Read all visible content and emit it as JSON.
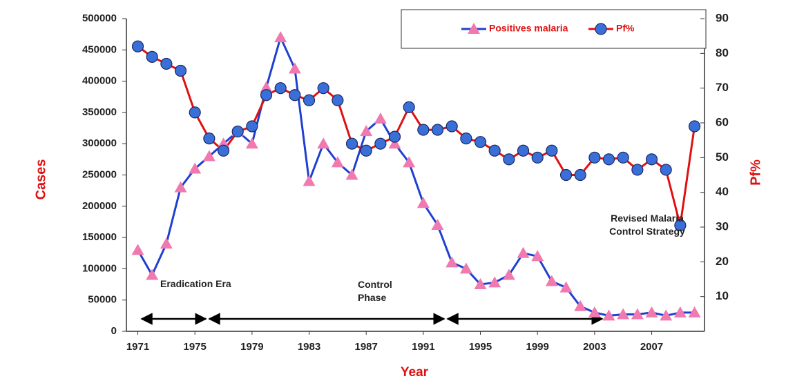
{
  "chart_data": {
    "type": "line",
    "x": [
      1971,
      1972,
      1973,
      1974,
      1975,
      1976,
      1977,
      1978,
      1979,
      1980,
      1981,
      1982,
      1983,
      1984,
      1985,
      1986,
      1987,
      1988,
      1989,
      1990,
      1991,
      1992,
      1993,
      1994,
      1995,
      1996,
      1997,
      1998,
      1999,
      2000,
      2001,
      2002,
      2003,
      2004,
      2005,
      2006,
      2007,
      2008,
      2009,
      2010
    ],
    "series": [
      {
        "name": "Positives malaria",
        "color": "#1f3fd0",
        "marker": "triangle",
        "marker_color": "#f07ab0",
        "values": [
          130000,
          90000,
          140000,
          230000,
          260000,
          280000,
          300000,
          320000,
          300000,
          390000,
          470000,
          420000,
          240000,
          300000,
          270000,
          250000,
          320000,
          340000,
          300000,
          270000,
          205000,
          170000,
          110000,
          100000,
          75000,
          78000,
          90000,
          125000,
          120000,
          80000,
          70000,
          40000,
          30000,
          25000,
          27000,
          27000,
          30000,
          25000,
          30000,
          30000
        ]
      },
      {
        "name": "Pf%",
        "color": "#e01010",
        "marker": "circle",
        "marker_color": "#3a6fd8",
        "axis": "y2",
        "values": [
          82,
          79,
          77,
          75,
          63,
          55.5,
          52,
          57.5,
          59,
          68,
          70,
          68,
          66.5,
          70,
          66.5,
          54,
          52,
          54,
          56,
          64.5,
          58,
          58,
          59,
          55.5,
          54.5,
          52,
          49.5,
          52,
          50,
          52,
          45,
          45,
          50,
          49.5,
          50,
          46.5,
          49.5,
          46.5,
          30.5,
          59
        ]
      }
    ],
    "xlabel": "Year",
    "ylabel": "Cases",
    "y2label": "Pf%",
    "xlim": [
      1970.2,
      2010.7
    ],
    "xticks": [
      1971,
      1975,
      1979,
      1983,
      1987,
      1991,
      1995,
      1999,
      2003,
      2007
    ],
    "ylim": [
      0,
      500000
    ],
    "yticks": [
      0,
      50000,
      100000,
      150000,
      200000,
      250000,
      300000,
      350000,
      400000,
      450000,
      500000
    ],
    "y2lim": [
      0,
      90
    ],
    "y2ticks": [
      10,
      20,
      30,
      40,
      50,
      60,
      70,
      80,
      90
    ],
    "grid": false,
    "legend": "top-right",
    "annotations": [
      "Eradication Era",
      "Control Phase",
      "Revised Malaria Control Strategy"
    ]
  }
}
